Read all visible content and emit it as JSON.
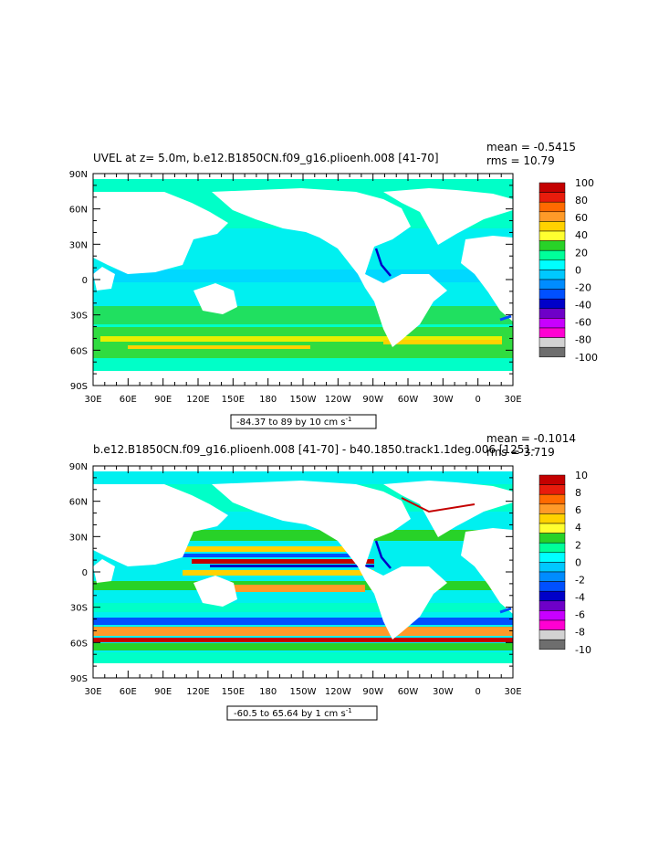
{
  "panels": [
    {
      "title": "UVEL at z=    5.0m, b.e12.B1850CN.f09_g16.plioenh.008 [41-70]",
      "mean_label": "mean = -0.5415",
      "rms_label": "rms = 10.79",
      "range_label": "-84.37 to 89 by 10 cm s",
      "range_sup": "-1",
      "colorbar_labels": [
        "100",
        "80",
        "60",
        "40",
        "20",
        "0",
        "-20",
        "-40",
        "-60",
        "-80",
        "-100"
      ],
      "colorbar_colors": [
        "#c40000",
        "#e81c0c",
        "#ff6a00",
        "#ff9a28",
        "#ffd200",
        "#ffff30",
        "#28d228",
        "#00ff9a",
        "#00ffff",
        "#00c8ff",
        "#008cff",
        "#0050ff",
        "#0000c8",
        "#6e00c8",
        "#c800ff",
        "#ff00d2",
        "#d2d2d2",
        "#6e6e6e"
      ]
    },
    {
      "title": "b.e12.B1850CN.f09_g16.plioenh.008 [41-70] - b40.1850.track1.1deg.006 [1251-",
      "mean_label": "mean = -0.1014",
      "rms_label": "rms = 3.719",
      "range_label": "-60.5 to 65.64 by 1 cm s",
      "range_sup": "-1",
      "colorbar_labels": [
        "10",
        "8",
        "6",
        "4",
        "2",
        "0",
        "-2",
        "-4",
        "-6",
        "-8",
        "-10"
      ],
      "colorbar_colors": [
        "#c40000",
        "#e81c0c",
        "#ff6a00",
        "#ff9a28",
        "#ffd200",
        "#ffff30",
        "#28d228",
        "#00ff9a",
        "#00ffff",
        "#00c8ff",
        "#008cff",
        "#0050ff",
        "#0000c8",
        "#6e00c8",
        "#c800ff",
        "#ff00d2",
        "#d2d2d2",
        "#6e6e6e"
      ]
    }
  ],
  "axes": {
    "y_labels": [
      "90N",
      "60N",
      "30N",
      "0",
      "30S",
      "60S",
      "90S"
    ],
    "x_labels": [
      "30E",
      "60E",
      "90E",
      "120E",
      "150E",
      "180",
      "150W",
      "120W",
      "90W",
      "60W",
      "30W",
      "0",
      "30E"
    ]
  }
}
